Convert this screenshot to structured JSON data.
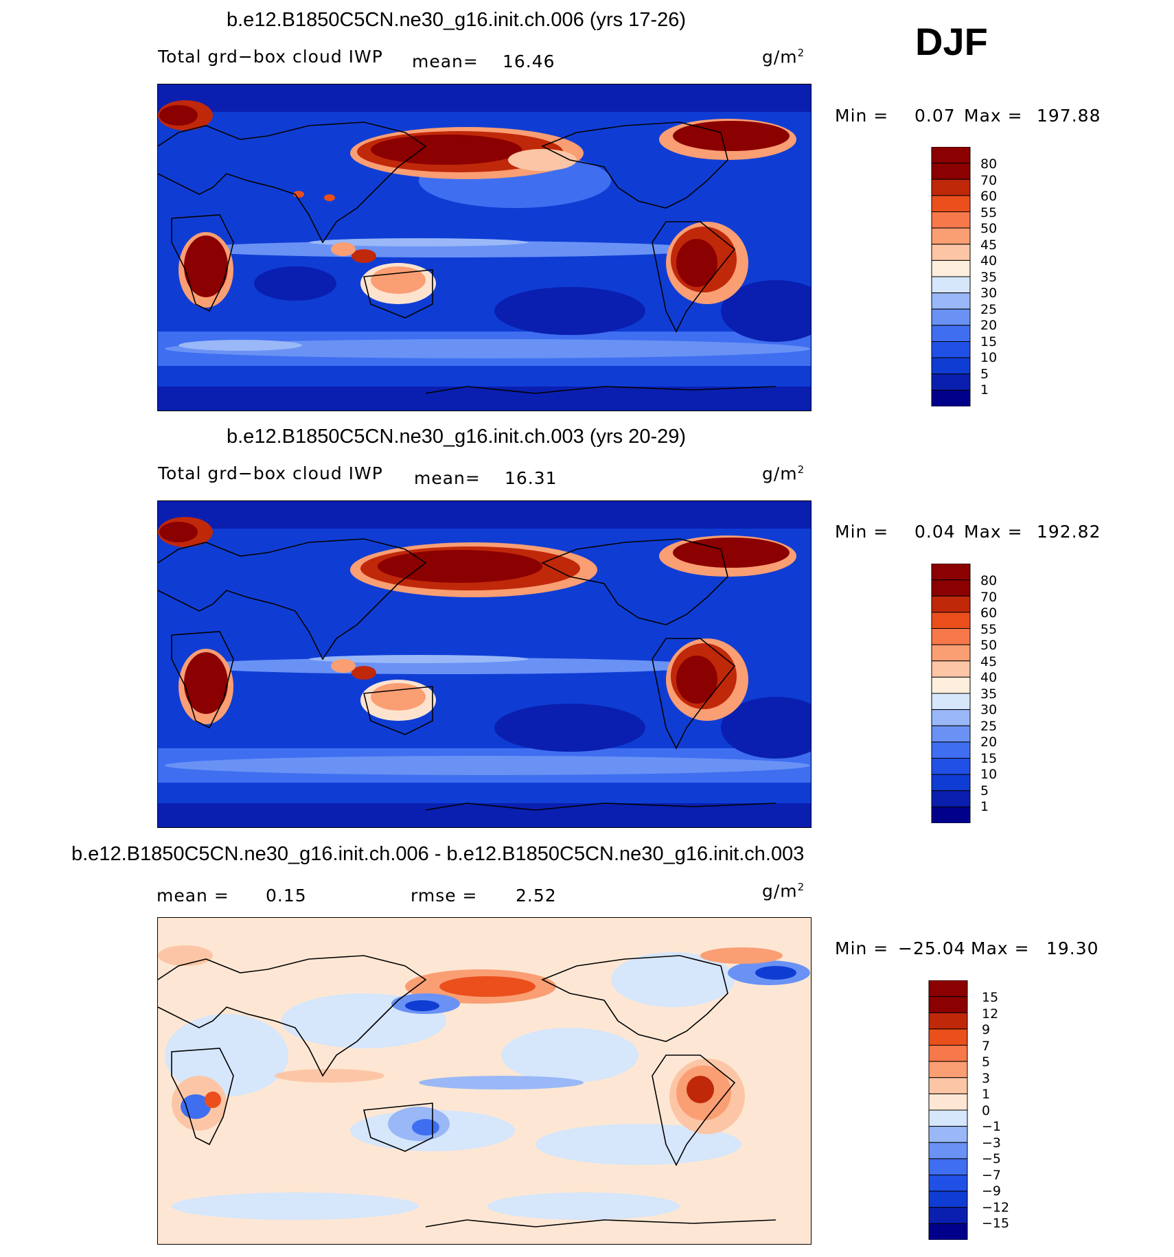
{
  "season": "DJF",
  "panels": [
    {
      "title": "b.e12.B1850C5CN.ne30_g16.init.ch.006 (yrs 17-26)",
      "variable": "Total grd−box cloud IWP",
      "mean_label": "mean=",
      "mean_value": "16.46",
      "units": "g/m",
      "units_exp": "2",
      "min_label": "Min =",
      "min_value": "0.07",
      "max_label": "Max =",
      "max_value": "197.88"
    },
    {
      "title": "b.e12.B1850C5CN.ne30_g16.init.ch.003 (yrs 20-29)",
      "variable": "Total grd−box cloud IWP",
      "mean_label": "mean=",
      "mean_value": "16.31",
      "units": "g/m",
      "units_exp": "2",
      "min_label": "Min =",
      "min_value": "0.04",
      "max_label": "Max =",
      "max_value": "192.82"
    },
    {
      "title": "b.e12.B1850C5CN.ne30_g16.init.ch.006 - b.e12.B1850C5CN.ne30_g16.init.ch.003",
      "mean_label": "mean =",
      "mean_value": "0.15",
      "rmse_label": "rmse =",
      "rmse_value": "2.52",
      "units": "g/m",
      "units_exp": "2",
      "min_label": "Min =",
      "min_value": "−25.04",
      "max_label": "Max =",
      "max_value": "19.30"
    }
  ],
  "colors": {
    "abs_scale": [
      "#00008b",
      "#0a1fb0",
      "#0f3dd4",
      "#2150e6",
      "#3f6ff0",
      "#6a92f5",
      "#9ab8f7",
      "#d6e6fb",
      "#fdeedd",
      "#fcc6a6",
      "#fa9e73",
      "#f7784a",
      "#ea4f1c",
      "#c0280a",
      "#8b0000"
    ],
    "diff_scale": [
      "#00008b",
      "#0a1fb0",
      "#0f3dd4",
      "#2150e6",
      "#3f6ff0",
      "#6a92f5",
      "#9ab8f7",
      "#d6e6fb",
      "#fde7d4",
      "#fcc6a6",
      "#fa9e73",
      "#f7784a",
      "#ea4f1c",
      "#c0280a",
      "#8b0000"
    ]
  },
  "chart_data": [
    {
      "type": "heatmap",
      "title": "b.e12.B1850C5CN.ne30_g16.init.ch.006 (yrs 17-26)",
      "variable": "Total grd−box cloud IWP",
      "units": "g/m2",
      "mean": 16.46,
      "min": 0.07,
      "max": 197.88,
      "colorbar_levels": [
        "80",
        "70",
        "60",
        "55",
        "50",
        "45",
        "40",
        "35",
        "30",
        "25",
        "20",
        "15",
        "10",
        "5",
        "1"
      ]
    },
    {
      "type": "heatmap",
      "title": "b.e12.B1850C5CN.ne30_g16.init.ch.003 (yrs 20-29)",
      "variable": "Total grd−box cloud IWP",
      "units": "g/m2",
      "mean": 16.31,
      "min": 0.04,
      "max": 192.82,
      "colorbar_levels": [
        "80",
        "70",
        "60",
        "55",
        "50",
        "45",
        "40",
        "35",
        "30",
        "25",
        "20",
        "15",
        "10",
        "5",
        "1"
      ]
    },
    {
      "type": "heatmap",
      "title": "b.e12.B1850C5CN.ne30_g16.init.ch.006 - b.e12.B1850C5CN.ne30_g16.init.ch.003",
      "units": "g/m2",
      "mean": 0.15,
      "rmse": 2.52,
      "min": -25.04,
      "max": 19.3,
      "colorbar_levels": [
        "15",
        "12",
        "9",
        "7",
        "5",
        "3",
        "1",
        "0",
        "−1",
        "−3",
        "−5",
        "−7",
        "−9",
        "−12",
        "−15"
      ]
    }
  ]
}
